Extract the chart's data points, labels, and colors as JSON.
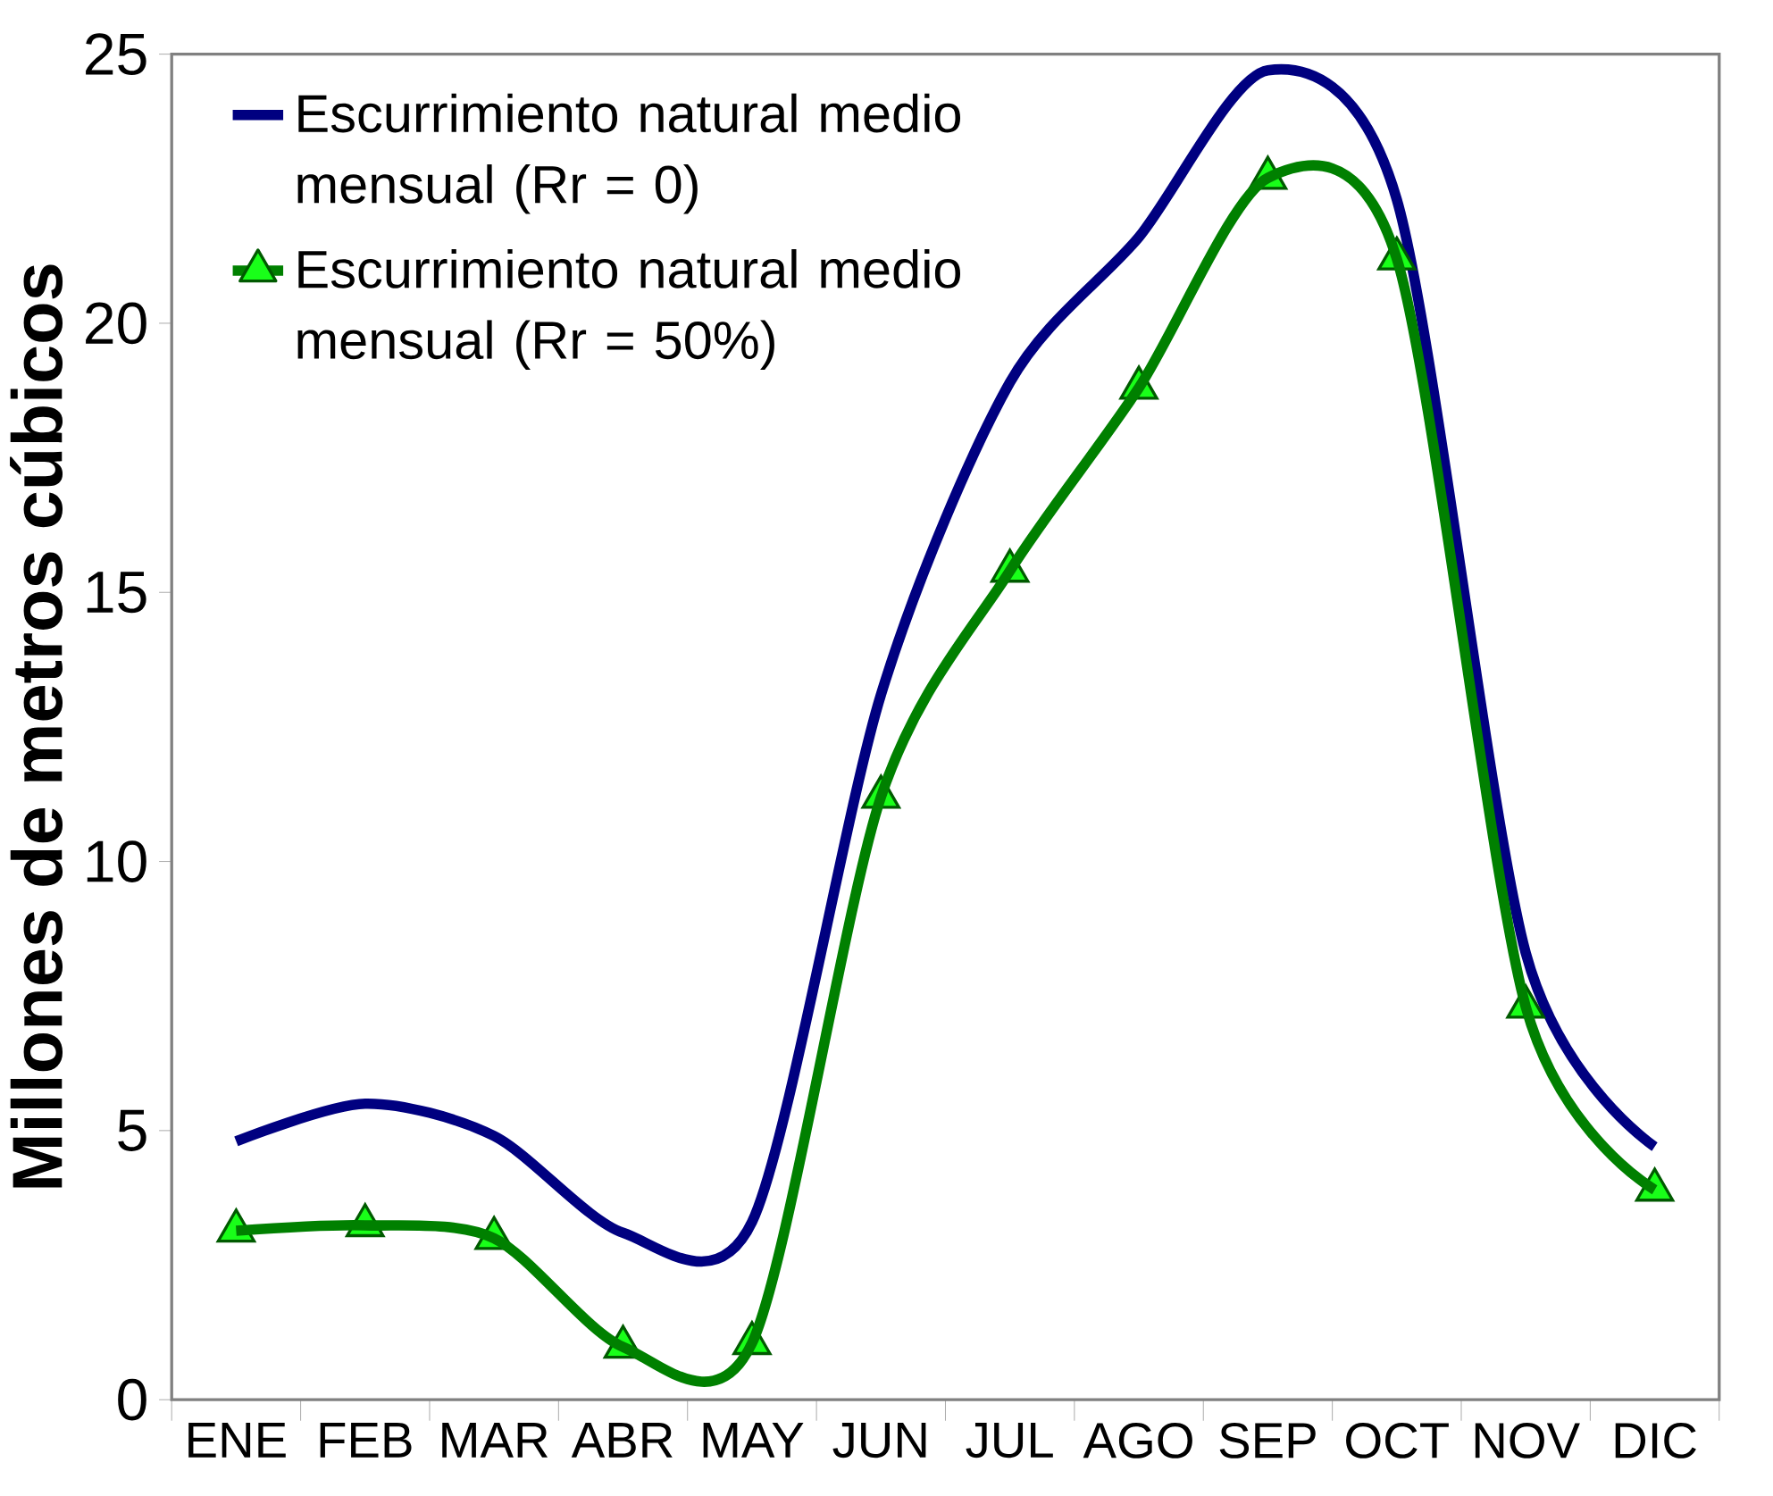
{
  "chart_data": {
    "type": "line",
    "ylabel": "Millones de metros cúbicos",
    "categories": [
      "ENE",
      "FEB",
      "MAR",
      "ABR",
      "MAY",
      "JUN",
      "JUL",
      "AGO",
      "SEP",
      "OCT",
      "NOV",
      "DIC"
    ],
    "series": [
      {
        "name": "Escurrimiento natural medio mensual (Rr = 0)",
        "color": "#000080",
        "marker": "none",
        "values": [
          4.8,
          5.5,
          4.9,
          3.1,
          3.3,
          13.1,
          18.9,
          21.6,
          24.7,
          22.3,
          8.3,
          4.7
        ]
      },
      {
        "name": "Escurrimiento natural medio mensual (Rr = 50%)",
        "color": "#008000",
        "marker": "triangle",
        "values": [
          3.14,
          3.24,
          3.0,
          0.98,
          1.05,
          11.2,
          15.4,
          18.8,
          22.7,
          21.2,
          7.3,
          3.9
        ]
      }
    ],
    "ylim": [
      0,
      25
    ],
    "yticks": [
      0,
      5,
      10,
      15,
      20,
      25
    ],
    "legend": "top left",
    "grid": false
  }
}
